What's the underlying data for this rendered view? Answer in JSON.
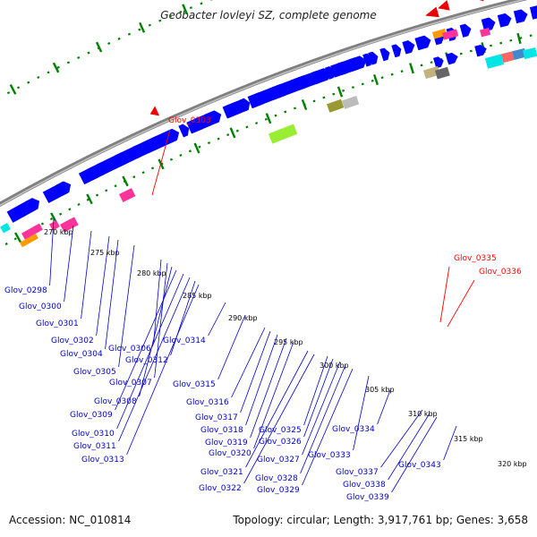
{
  "title": "Geobacter lovleyi SZ, complete genome",
  "footer": {
    "accession": "Accession: NC_010814",
    "summary": "Topology: circular; Length: 3,917,761 bp; Genes: 3,658"
  },
  "colors": {
    "backbone": "#808080",
    "forward_gene": "#0000ff",
    "highlight_label": "#ff0000",
    "gene_label": "#0000cc",
    "tick": "#008000",
    "scale_label": "#000000"
  },
  "scale_labels": [
    "270 kbp",
    "275 kbp",
    "280 kbp",
    "285 kbp",
    "290 kbp",
    "295 kbp",
    "300 kbp",
    "305 kbp",
    "310 kbp",
    "315 kbp",
    "320 kbp"
  ],
  "highlight_labels": [
    "Glov_0303",
    "Glov_0335",
    "Glov_0336"
  ],
  "gene_labels": [
    "Glov_0298",
    "Glov_0300",
    "Glov_0301",
    "Glov_0302",
    "Glov_0304",
    "Glov_0305",
    "Glov_0306",
    "Glov_0307",
    "Glov_0308",
    "Glov_0309",
    "Glov_0310",
    "Glov_0311",
    "Glov_0312",
    "Glov_0313",
    "Glov_0314",
    "Glov_0315",
    "Glov_0316",
    "Glov_0317",
    "Glov_0318",
    "Glov_0319",
    "Glov_0320",
    "Glov_0321",
    "Glov_0322",
    "Glov_0325",
    "Glov_0326",
    "Glov_0327",
    "Glov_0328",
    "Glov_0329",
    "Glov_0333",
    "Glov_0334",
    "Glov_0337",
    "Glov_0338",
    "Glov_0339",
    "Glov_0343"
  ]
}
